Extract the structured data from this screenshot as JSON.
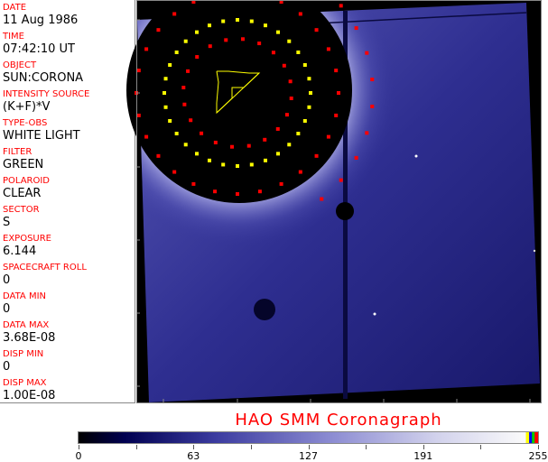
{
  "metadata_fields": [
    {
      "label": "DATE",
      "value": "11 Aug 1986"
    },
    {
      "label": "TIME",
      "value": "07:42:10 UT"
    },
    {
      "label": "OBJECT",
      "value": "SUN:CORONA"
    },
    {
      "label": "INTENSITY SOURCE",
      "value": "(K+F)*V"
    },
    {
      "label": "TYPE-OBS",
      "value": "WHITE LIGHT"
    },
    {
      "label": "FILTER",
      "value": "GREEN"
    },
    {
      "label": "POLAROID",
      "value": "CLEAR"
    },
    {
      "label": "SECTOR",
      "value": "S"
    },
    {
      "label": "EXPOSURE",
      "value": "6.144"
    },
    {
      "label": "SPACECRAFT ROLL",
      "value": "0"
    },
    {
      "label": "DATA MIN",
      "value": "0"
    },
    {
      "label": "DATA MAX",
      "value": "3.68E-08"
    },
    {
      "label": "DISP MIN",
      "value": "0"
    },
    {
      "label": "DISP MAX",
      "value": "1.00E-08"
    }
  ],
  "title": "HAO  SMM Coronagraph",
  "colorbar": {
    "labels": [
      "0",
      "63",
      "127",
      "191",
      "255"
    ],
    "min": 0,
    "max": 255,
    "colormap": "black-blue-white",
    "overflow_colors": [
      "#ffff00",
      "#0000ff",
      "#00cc00",
      "#ff0000"
    ]
  },
  "colors": {
    "label": "#ff0000",
    "marker_red": "#ff0000",
    "marker_yellow": "#ffff00",
    "image_blue": "#3a3a9a"
  }
}
